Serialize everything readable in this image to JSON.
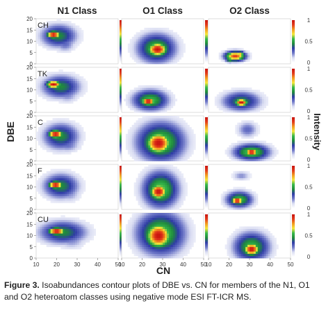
{
  "figure": {
    "caption_label": "Figure 3.",
    "caption_text": " Isoabundances contour plots of DBE vs. CN for members of the N1, O1 and O2 heteroatom classes using negative mode ESI FT-ICR MS."
  },
  "chart_data": {
    "type": "heatmap",
    "title": "",
    "xlabel": "CN",
    "ylabel": "DBE",
    "colorbar_label": "Intensity",
    "columns": [
      "N1 Class",
      "O1 Class",
      "O2 Class"
    ],
    "rows": [
      "CH",
      "TK",
      "C",
      "F",
      "CU"
    ],
    "xlim": [
      10,
      50
    ],
    "ylim": [
      0,
      20
    ],
    "xticks": [
      10,
      20,
      30,
      40,
      50
    ],
    "yticks": [
      0,
      5,
      10,
      15,
      20
    ],
    "colorbar_range": [
      0,
      1
    ],
    "colorbar_ticks": [
      "0",
      "0.5",
      "1"
    ],
    "colormap": [
      "#ffffff",
      "#d9dcf2",
      "#6f78c8",
      "#2f3ca6",
      "#1f8a3c",
      "#36b84a",
      "#f5e63a",
      "#f29a1f",
      "#e23a1c",
      "#c81410"
    ],
    "panels": [
      [
        {
          "blobs": [
            {
              "cx": 21,
              "cy": 12.5,
              "sx": 6,
              "sy": 3.5,
              "peak": 0.45
            },
            {
              "cx": 18.5,
              "cy": 13,
              "sx": 2.4,
              "sy": 1.2,
              "peak": 1.0
            },
            {
              "cx": 24,
              "cy": 9,
              "sx": 3.5,
              "sy": 2.5,
              "peak": 0.25
            }
          ]
        },
        {
          "blobs": [
            {
              "cx": 27,
              "cy": 7,
              "sx": 6.5,
              "sy": 4.5,
              "peak": 0.55
            },
            {
              "cx": 27.5,
              "cy": 6.5,
              "sx": 3.5,
              "sy": 2.2,
              "peak": 1.0
            }
          ]
        },
        {
          "blobs": [
            {
              "cx": 23,
              "cy": 3.5,
              "sx": 3.5,
              "sy": 1.5,
              "peak": 0.9
            },
            {
              "cx": 20.5,
              "cy": 2.2,
              "sx": 1.6,
              "sy": 1.0,
              "peak": 0.6
            },
            {
              "cx": 25.5,
              "cy": 4.5,
              "sx": 1.5,
              "sy": 0.9,
              "peak": 0.7
            }
          ]
        }
      ],
      [
        {
          "blobs": [
            {
              "cx": 22,
              "cy": 11.5,
              "sx": 6.5,
              "sy": 3.5,
              "peak": 0.45
            },
            {
              "cx": 18.5,
              "cy": 12.5,
              "sx": 2.6,
              "sy": 1.2,
              "peak": 1.0
            },
            {
              "cx": 25,
              "cy": 8,
              "sx": 4,
              "sy": 2.5,
              "peak": 0.22
            }
          ]
        },
        {
          "blobs": [
            {
              "cx": 24,
              "cy": 5.5,
              "sx": 6,
              "sy": 3.2,
              "peak": 0.55
            },
            {
              "cx": 23,
              "cy": 5,
              "sx": 2.5,
              "sy": 1.3,
              "peak": 1.0
            }
          ]
        },
        {
          "blobs": [
            {
              "cx": 26,
              "cy": 5,
              "sx": 6.5,
              "sy": 3,
              "peak": 0.45
            },
            {
              "cx": 26,
              "cy": 4.5,
              "sx": 2.3,
              "sy": 1.2,
              "peak": 1.0
            }
          ]
        }
      ],
      [
        {
          "blobs": [
            {
              "cx": 22,
              "cy": 11,
              "sx": 6,
              "sy": 4,
              "peak": 0.45
            },
            {
              "cx": 19.5,
              "cy": 12,
              "sx": 2.6,
              "sy": 1.3,
              "peak": 1.0
            },
            {
              "cx": 25,
              "cy": 7.5,
              "sx": 4.5,
              "sy": 2.5,
              "peak": 0.25
            }
          ]
        },
        {
          "blobs": [
            {
              "cx": 29,
              "cy": 8.5,
              "sx": 8,
              "sy": 6,
              "peak": 0.6
            },
            {
              "cx": 28,
              "cy": 8,
              "sx": 4.5,
              "sy": 3.5,
              "peak": 1.0
            }
          ]
        },
        {
          "blobs": [
            {
              "cx": 31,
              "cy": 4,
              "sx": 6,
              "sy": 2.5,
              "peak": 0.6
            },
            {
              "cx": 31,
              "cy": 4,
              "sx": 2.4,
              "sy": 1.1,
              "peak": 1.0
            },
            {
              "cx": 29,
              "cy": 14,
              "sx": 3.5,
              "sy": 2.5,
              "peak": 0.25
            }
          ]
        }
      ],
      [
        {
          "blobs": [
            {
              "cx": 22,
              "cy": 10.5,
              "sx": 6,
              "sy": 3.8,
              "peak": 0.45
            },
            {
              "cx": 19.5,
              "cy": 11,
              "sx": 2.5,
              "sy": 1.2,
              "peak": 1.0
            },
            {
              "cx": 26,
              "cy": 7,
              "sx": 4,
              "sy": 2.5,
              "peak": 0.2
            }
          ]
        },
        {
          "blobs": [
            {
              "cx": 29,
              "cy": 9,
              "sx": 6,
              "sy": 5.5,
              "peak": 0.6
            },
            {
              "cx": 28,
              "cy": 8,
              "sx": 3,
              "sy": 2.5,
              "peak": 1.0
            }
          ]
        },
        {
          "blobs": [
            {
              "cx": 25,
              "cy": 4.5,
              "sx": 4.5,
              "sy": 2.5,
              "peak": 0.55
            },
            {
              "cx": 24,
              "cy": 4,
              "sx": 2,
              "sy": 1.1,
              "peak": 1.0
            },
            {
              "cx": 26,
              "cy": 15,
              "sx": 3,
              "sy": 1.5,
              "peak": 0.2
            }
          ]
        }
      ],
      [
        {
          "blobs": [
            {
              "cx": 23,
              "cy": 11.5,
              "sx": 8,
              "sy": 3.5,
              "peak": 0.45
            },
            {
              "cx": 20,
              "cy": 12,
              "sx": 3,
              "sy": 1.2,
              "peak": 1.0
            },
            {
              "cx": 27,
              "cy": 8.5,
              "sx": 5,
              "sy": 3,
              "peak": 0.22
            }
          ]
        },
        {
          "blobs": [
            {
              "cx": 29,
              "cy": 11,
              "sx": 8,
              "sy": 6.5,
              "peak": 0.6
            },
            {
              "cx": 28,
              "cy": 10,
              "sx": 4.5,
              "sy": 4,
              "peak": 1.0
            }
          ]
        },
        {
          "blobs": [
            {
              "cx": 31,
              "cy": 5,
              "sx": 6,
              "sy": 4.5,
              "peak": 0.55
            },
            {
              "cx": 31,
              "cy": 4,
              "sx": 2.8,
              "sy": 2,
              "peak": 1.0
            },
            {
              "cx": 26,
              "cy": 9,
              "sx": 3,
              "sy": 2,
              "peak": 0.2
            }
          ]
        }
      ]
    ]
  }
}
